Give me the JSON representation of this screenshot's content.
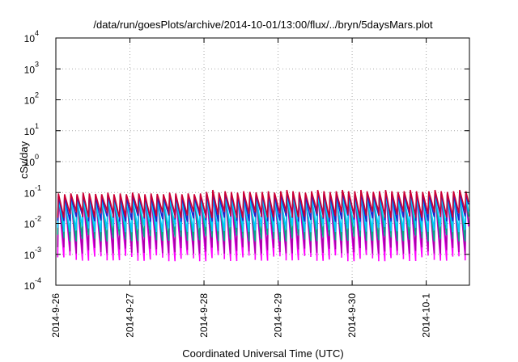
{
  "chart_data": {
    "type": "line",
    "title": "/data/run/goesPlots/archive/2014-10-01/13:00/flux/../bryn/5daysMars.plot",
    "xlabel": "Coordinated Universal Time (UTC)",
    "ylabel": "cSv/day",
    "yscale": "log",
    "ylim": [
      0.0001,
      10000
    ],
    "xlim": [
      "2014-09-26T00:00",
      "2014-10-01T14:00"
    ],
    "grid": true,
    "legend": "none",
    "x_tick_labels": [
      "2014-9-26",
      "2014-9-27",
      "2014-9-28",
      "2014-9-29",
      "2014-9-30",
      "2014-10-1"
    ],
    "y_tick_labels": [
      {
        "base": "10",
        "exp": "-4"
      },
      {
        "base": "10",
        "exp": "-3"
      },
      {
        "base": "10",
        "exp": "-2"
      },
      {
        "base": "10",
        "exp": "-1"
      },
      {
        "base": "10",
        "exp": "0"
      },
      {
        "base": "10",
        "exp": "1"
      },
      {
        "base": "10",
        "exp": "2"
      },
      {
        "base": "10",
        "exp": "3"
      },
      {
        "base": "10",
        "exp": "4"
      }
    ],
    "pattern": {
      "description_free": true,
      "cycle_hours": 2,
      "phase_hours": 0.6,
      "peak_values": [
        0.085,
        0.08,
        0.085,
        0.08,
        0.09,
        0.085,
        0.082,
        0.08,
        0.09,
        0.08,
        0.085,
        0.08,
        0.09,
        0.085,
        0.08,
        0.085,
        0.082,
        0.08,
        0.09,
        0.085,
        0.08,
        0.085,
        0.08,
        0.085,
        0.095,
        0.11,
        0.09,
        0.1,
        0.095,
        0.09,
        0.1,
        0.095,
        0.092,
        0.095,
        0.1,
        0.09,
        0.1,
        0.11,
        0.1,
        0.095,
        0.09,
        0.1,
        0.11,
        0.1,
        0.095,
        0.1,
        0.11,
        0.1,
        0.1,
        0.11,
        0.1,
        0.095,
        0.1,
        0.11,
        0.1,
        0.095,
        0.1,
        0.11,
        0.1,
        0.095,
        0.1,
        0.11,
        0.1,
        0.095,
        0.1,
        0.11,
        0.1,
        0.095
      ]
    },
    "series": [
      {
        "color": "#ff00ff",
        "scale": 1.0,
        "trough": 0.0008
      },
      {
        "color": "#aa00aa",
        "scale": 0.92,
        "trough": 0.0014
      },
      {
        "color": "#00aa88",
        "scale": 0.82,
        "trough": 0.0035
      },
      {
        "color": "#00ccff",
        "scale": 0.72,
        "trough": 0.007
      },
      {
        "color": "#2222cc",
        "scale": 0.9,
        "trough": 0.015
      },
      {
        "color": "#cc0033",
        "scale": 1.1,
        "trough": 0.02
      }
    ]
  }
}
